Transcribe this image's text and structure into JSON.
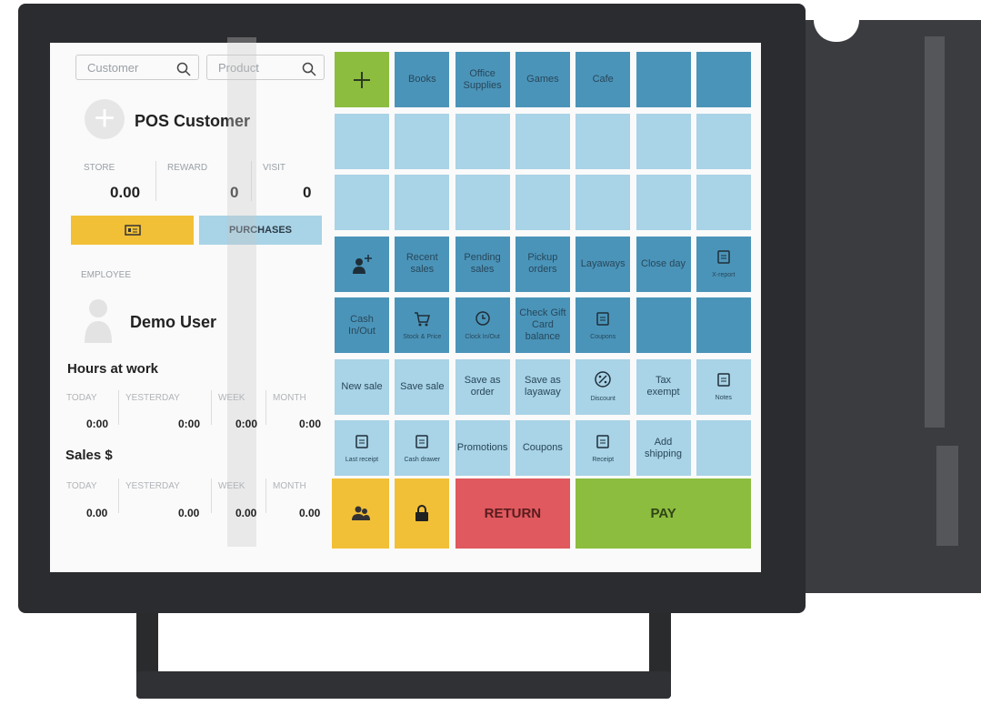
{
  "search": {
    "customer": "Customer",
    "product": "Product"
  },
  "customer": {
    "name": "POS Customer",
    "stats": [
      {
        "label": "STORE",
        "value": "0.00"
      },
      {
        "label": "REWARD",
        "value": "0"
      },
      {
        "label": "VISIT",
        "value": "0"
      }
    ],
    "purchases": "PURCHASES"
  },
  "employee": {
    "section": "EMPLOYEE",
    "name": "Demo User"
  },
  "hours": {
    "title": "Hours at work",
    "columns": [
      {
        "label": "TODAY",
        "value": "0:00"
      },
      {
        "label": "YESTERDAY",
        "value": "0:00"
      },
      {
        "label": "WEEK",
        "value": "0:00"
      },
      {
        "label": "MONTH",
        "value": "0:00"
      }
    ]
  },
  "sales": {
    "title": "Sales $",
    "columns": [
      {
        "label": "TODAY",
        "value": "0.00"
      },
      {
        "label": "YESTERDAY",
        "value": "0.00"
      },
      {
        "label": "WEEK",
        "value": "0.00"
      },
      {
        "label": "MONTH",
        "value": "0.00"
      }
    ]
  },
  "grid": [
    [
      null,
      {
        "label": "Books"
      },
      {
        "label": "Office Supplies"
      },
      {
        "label": "Games"
      },
      {
        "label": "Cafe"
      },
      null,
      null
    ],
    [
      null,
      null,
      null,
      null,
      null,
      null,
      null
    ],
    [
      null,
      null,
      null,
      null,
      null,
      null,
      null
    ],
    [
      null,
      {
        "label": "Recent sales"
      },
      {
        "label": "Pending sales"
      },
      {
        "label": "Pickup orders"
      },
      {
        "label": "Layaways"
      },
      {
        "label": "Close day"
      },
      {
        "caption": "X-report"
      }
    ],
    [
      {
        "label": "Cash In/Out"
      },
      {
        "caption": "Stock & Price"
      },
      {
        "caption": "Clock In/Out"
      },
      {
        "label": "Check Gift Card balance"
      },
      {
        "caption": "Coupons"
      },
      null,
      null
    ],
    [
      {
        "label": "New sale"
      },
      {
        "label": "Save sale"
      },
      {
        "label": "Save as order"
      },
      {
        "label": "Save as layaway"
      },
      {
        "caption": "Discount"
      },
      {
        "label": "Tax exempt"
      },
      {
        "caption": "Notes"
      }
    ],
    [
      {
        "caption": "Last receipt"
      },
      {
        "caption": "Cash drawer"
      },
      {
        "label": "Promotions"
      },
      {
        "label": "Coupons"
      },
      {
        "caption": "Receipt"
      },
      {
        "label": "Add shipping"
      },
      null
    ]
  ],
  "actions": {
    "return": "RETURN",
    "pay": "PAY"
  }
}
